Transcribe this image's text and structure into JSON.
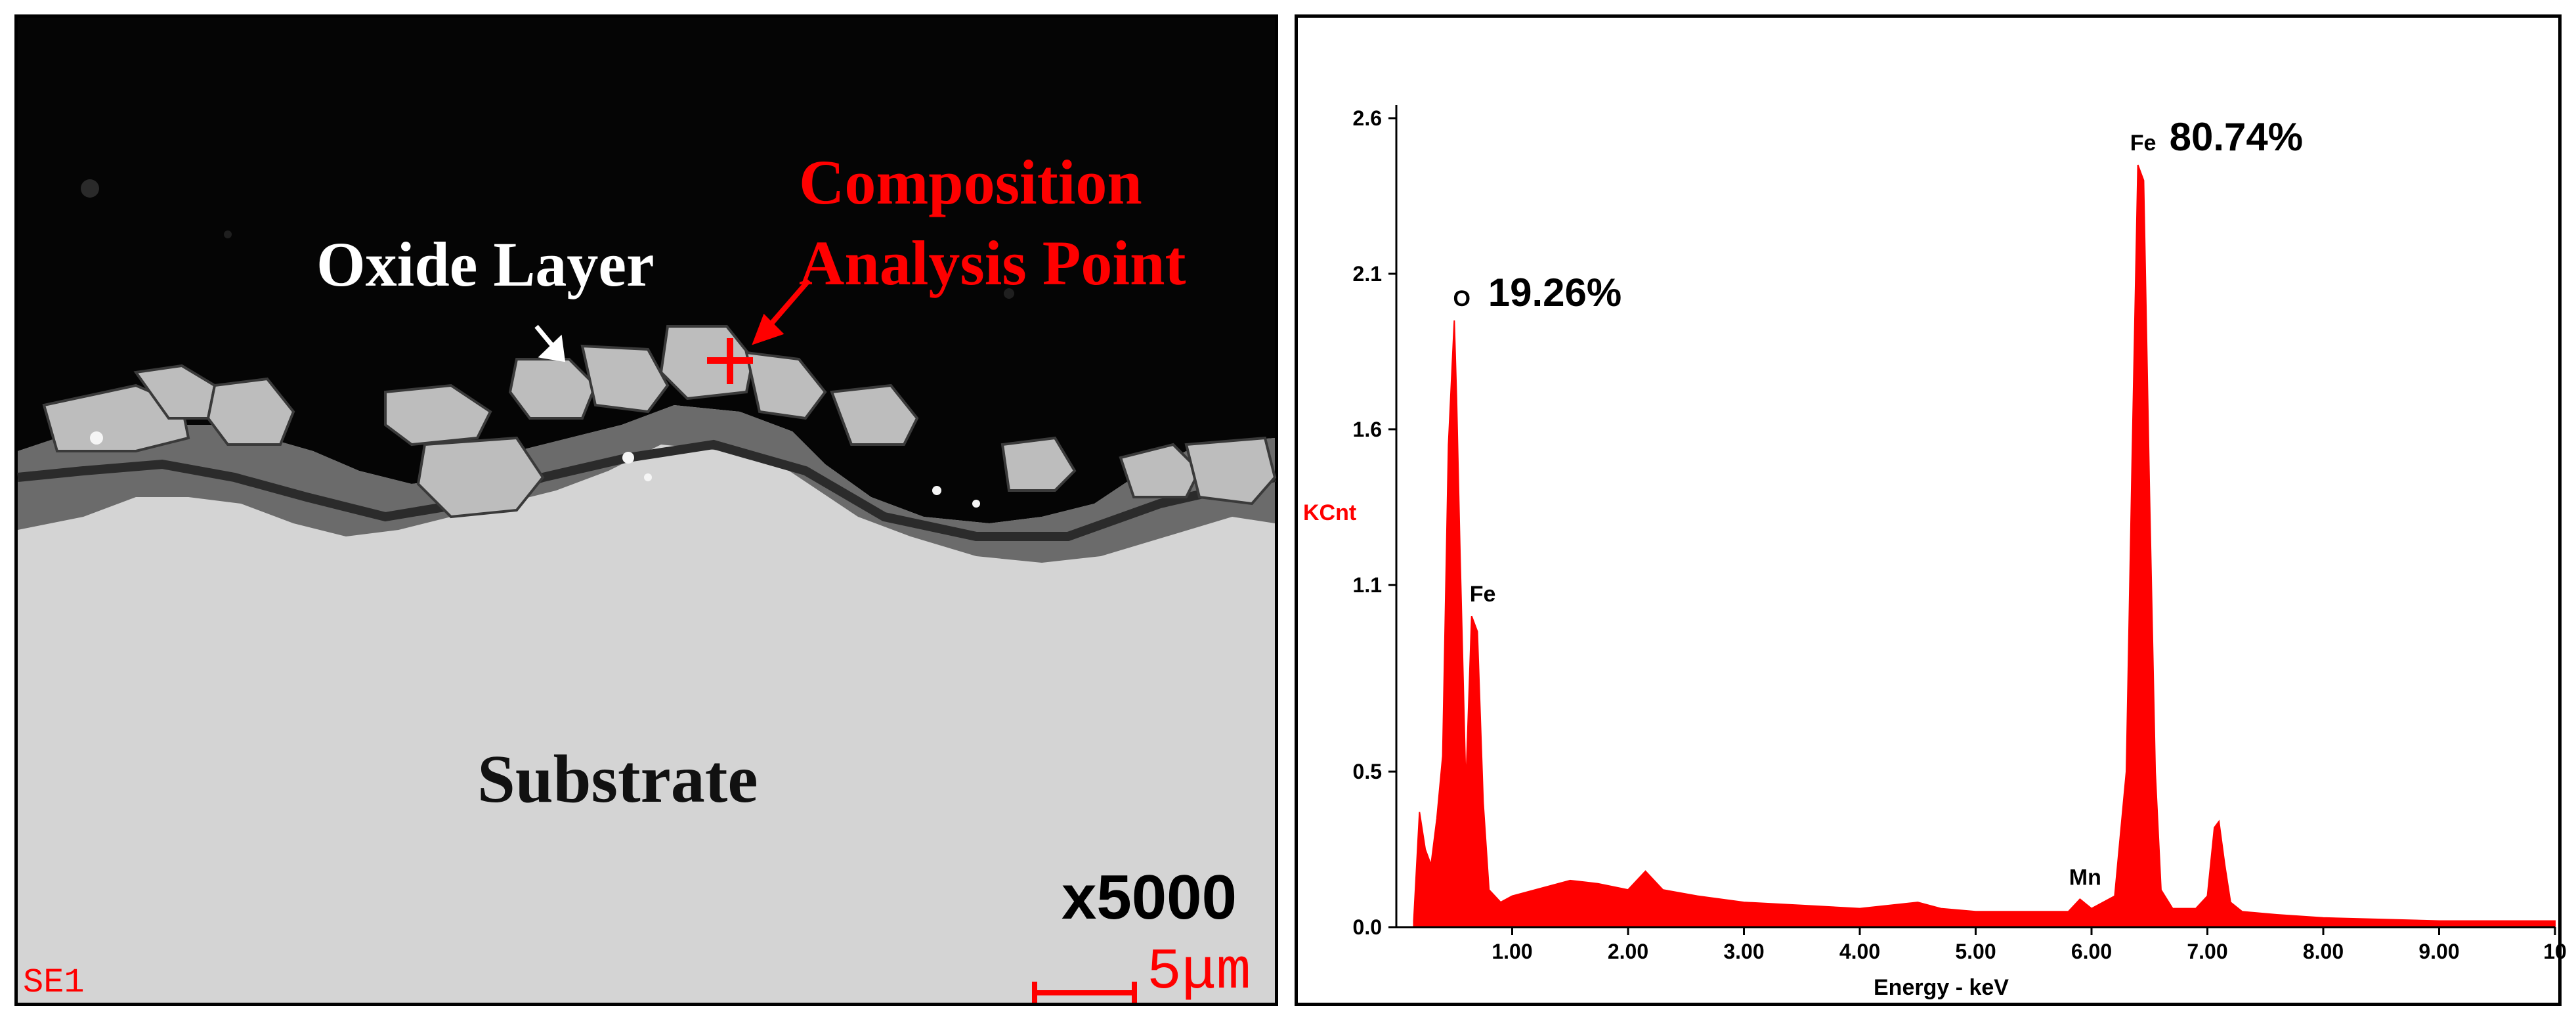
{
  "sem": {
    "oxide_layer_label": "Oxide Layer",
    "composition_label_line1": "Composition",
    "composition_label_line2": "Analysis Point",
    "substrate_label": "Substrate",
    "magnification": "x5000",
    "detector": "SE1",
    "scale_bar": "5μm",
    "colors": {
      "annotation": "#ff0000",
      "oxide_text": "#ffffff"
    }
  },
  "chart_data": {
    "type": "line",
    "xlabel": "Energy - keV",
    "ylabel": "KCnt",
    "xlim": [
      0,
      10.0
    ],
    "ylim": [
      0,
      2.6
    ],
    "x_ticks": [
      1,
      2,
      3,
      4,
      5,
      6,
      7,
      8,
      9,
      10
    ],
    "x_tick_labels": [
      "1.00",
      "2.00",
      "3.00",
      "4.00",
      "5.00",
      "6.00",
      "7.00",
      "8.00",
      "9.00",
      "10"
    ],
    "y_ticks": [
      0.0,
      0.5,
      1.1,
      1.6,
      2.1,
      2.6
    ],
    "y_tick_labels": [
      "0.0",
      "0.5",
      "1.1",
      "1.6",
      "2.1",
      "2.6"
    ],
    "grid": false,
    "fill_color": "#ff0000",
    "spectrum": {
      "x": [
        0.15,
        0.2,
        0.25,
        0.3,
        0.35,
        0.4,
        0.45,
        0.5,
        0.52,
        0.55,
        0.6,
        0.65,
        0.7,
        0.75,
        0.8,
        0.9,
        1.0,
        1.2,
        1.5,
        1.74,
        2.0,
        2.15,
        2.3,
        2.6,
        3.0,
        3.5,
        4.0,
        4.5,
        4.7,
        5.0,
        5.5,
        5.8,
        5.9,
        6.0,
        6.2,
        6.3,
        6.35,
        6.4,
        6.45,
        6.5,
        6.55,
        6.6,
        6.7,
        6.9,
        7.0,
        7.06,
        7.1,
        7.15,
        7.2,
        7.3,
        7.6,
        8.0,
        9.0,
        10.0
      ],
      "y": [
        0.02,
        0.37,
        0.25,
        0.2,
        0.35,
        0.55,
        1.55,
        1.95,
        1.7,
        1.2,
        0.45,
        1.0,
        0.95,
        0.4,
        0.12,
        0.08,
        0.1,
        0.12,
        0.15,
        0.14,
        0.12,
        0.18,
        0.12,
        0.1,
        0.08,
        0.07,
        0.06,
        0.08,
        0.06,
        0.05,
        0.05,
        0.05,
        0.09,
        0.06,
        0.1,
        0.5,
        1.5,
        2.45,
        2.4,
        1.4,
        0.5,
        0.12,
        0.06,
        0.06,
        0.1,
        0.32,
        0.34,
        0.2,
        0.08,
        0.05,
        0.04,
        0.03,
        0.02,
        0.02
      ]
    },
    "annotations": [
      {
        "element": "O",
        "percent": "19.26%",
        "x": 0.52,
        "y": 1.95
      },
      {
        "element": "Fe",
        "percent": "80.74%",
        "x": 6.4,
        "y": 2.45
      },
      {
        "element": "Fe",
        "percent": "",
        "x": 0.7,
        "y": 1.0
      },
      {
        "element": "Mn",
        "percent": "",
        "x": 5.9,
        "y": 0.09
      }
    ]
  }
}
